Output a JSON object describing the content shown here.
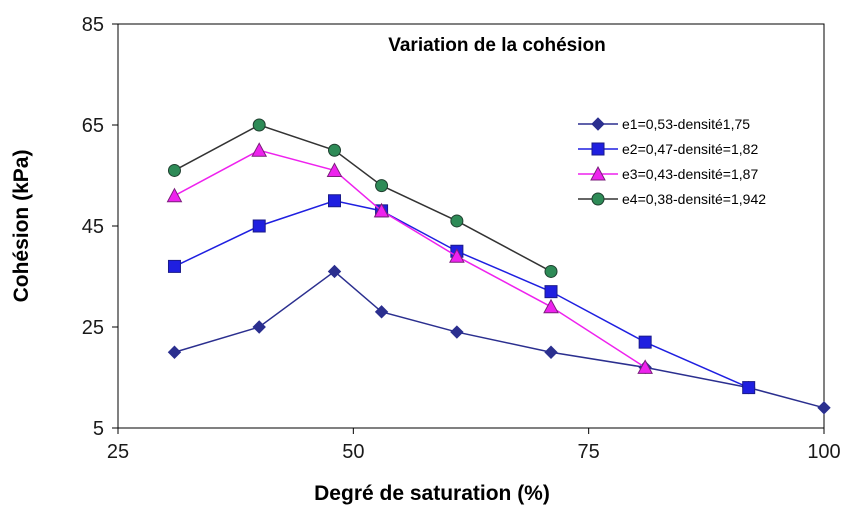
{
  "chart_data": {
    "type": "line",
    "title": "Variation  de la cohésion",
    "xlabel": "Degré de saturation  (%)",
    "ylabel": "Cohésion (kPa)",
    "xlim": [
      25,
      100
    ],
    "ylim": [
      5,
      85
    ],
    "xticks": [
      "25",
      "50",
      "75",
      "100"
    ],
    "yticks": [
      "5",
      "25",
      "45",
      "65",
      "85"
    ],
    "grid": false,
    "legend_position": "right",
    "series": [
      {
        "name": "e1=0,53-densité1,75",
        "color": "#2b2f8f",
        "marker": "diamond",
        "x": [
          31,
          40,
          48,
          53,
          61,
          71,
          81,
          92,
          100
        ],
        "y": [
          20,
          25,
          36,
          28,
          24,
          20,
          17,
          13,
          9
        ]
      },
      {
        "name": "e2=0,47-densité=1,82",
        "color": "#1f1fe0",
        "marker": "square",
        "x": [
          31,
          40,
          48,
          53,
          61,
          71,
          81,
          92
        ],
        "y": [
          37,
          45,
          50,
          48,
          40,
          32,
          22,
          13
        ]
      },
      {
        "name": "e3=0,43-densité=1,87",
        "color": "#ee22ee",
        "marker": "triangle",
        "x": [
          31,
          40,
          48,
          53,
          61,
          71,
          81
        ],
        "y": [
          51,
          60,
          56,
          48,
          39,
          29,
          17
        ]
      },
      {
        "name": "e4=0,38-densité=1,942",
        "color": "#333333",
        "marker": "circle",
        "marker_fill": "#2e8b57",
        "x": [
          31,
          40,
          48,
          53,
          61,
          71
        ],
        "y": [
          56,
          65,
          60,
          53,
          46,
          36
        ]
      }
    ]
  }
}
